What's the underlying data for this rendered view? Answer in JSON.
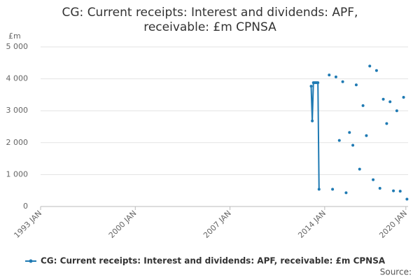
{
  "chart_data": {
    "type": "line",
    "title": "CG: Current receipts: Interest and dividends: APF, receivable: £m CPNSA",
    "y_label": "£m",
    "source": "Source:",
    "x": [
      "2013 JAN",
      "2013 FEB",
      "2013 MAR",
      "2013 APR",
      "2013 MAY",
      "2013 JUN",
      "2013 JUL",
      "2013 AUG",
      "2013 SEP",
      "2014 MAY",
      "2014 JUN",
      "2014 AUG",
      "2014 SEP",
      "2014 NOV",
      "2014 DEC",
      "2015 FEB",
      "2015 MAR",
      "2015 MAY",
      "2015 JUN",
      "2015 AUG",
      "2015 SEP",
      "2015 NOV",
      "2015 DEC",
      "2016 FEB",
      "2016 MAR",
      "2016 MAY",
      "2016 JUN",
      "2016 AUG",
      "2016 SEP",
      "2016 NOV",
      "2016 DEC",
      "2017 FEB",
      "2017 MAR",
      "2017 MAY",
      "2017 JUN",
      "2017 AUG",
      "2017 SEP",
      "2017 NOV",
      "2017 DEC",
      "2018 FEB",
      "2018 MAR",
      "2018 MAY",
      "2018 JUN",
      "2018 AUG",
      "2018 SEP",
      "2018 NOV",
      "2018 DEC",
      "2019 FEB",
      "2019 MAR",
      "2019 MAY",
      "2019 JUN",
      "2019 AUG",
      "2019 SEP",
      "2019 NOV",
      "2019 DEC",
      "2020 FEB"
    ],
    "series": [
      {
        "name": "CG: Current receipts: Interest and dividends: APF, receivable: £m CPNSA",
        "color": "#1f7ab3",
        "values": [
          3770,
          2680,
          3880,
          3880,
          3880,
          3880,
          3880,
          540,
          null,
          4120,
          null,
          540,
          null,
          4060,
          null,
          2070,
          null,
          3910,
          null,
          430,
          null,
          2320,
          null,
          1920,
          null,
          3810,
          null,
          1170,
          null,
          3160,
          null,
          2220,
          null,
          4400,
          null,
          840,
          null,
          4260,
          null,
          570,
          null,
          3360,
          null,
          2600,
          null,
          3280,
          null,
          490,
          null,
          3000,
          null,
          480,
          null,
          3420,
          null,
          230
        ]
      }
    ],
    "xlim": [
      "1993 JAN",
      "2020 MAR"
    ],
    "xticks": [
      "1993 JAN",
      "2000 JAN",
      "2007 JAN",
      "2014 JAN",
      "2020 JAN"
    ],
    "ylim": [
      0,
      5000
    ],
    "yticks": [
      0,
      {
        "value": 1000,
        "label": "1 000"
      },
      {
        "value": 2000,
        "label": "2 000"
      },
      {
        "value": 3000,
        "label": "3 000"
      },
      {
        "value": 4000,
        "label": "4 000"
      },
      {
        "value": 5000,
        "label": "5 000"
      }
    ],
    "grid": true
  }
}
